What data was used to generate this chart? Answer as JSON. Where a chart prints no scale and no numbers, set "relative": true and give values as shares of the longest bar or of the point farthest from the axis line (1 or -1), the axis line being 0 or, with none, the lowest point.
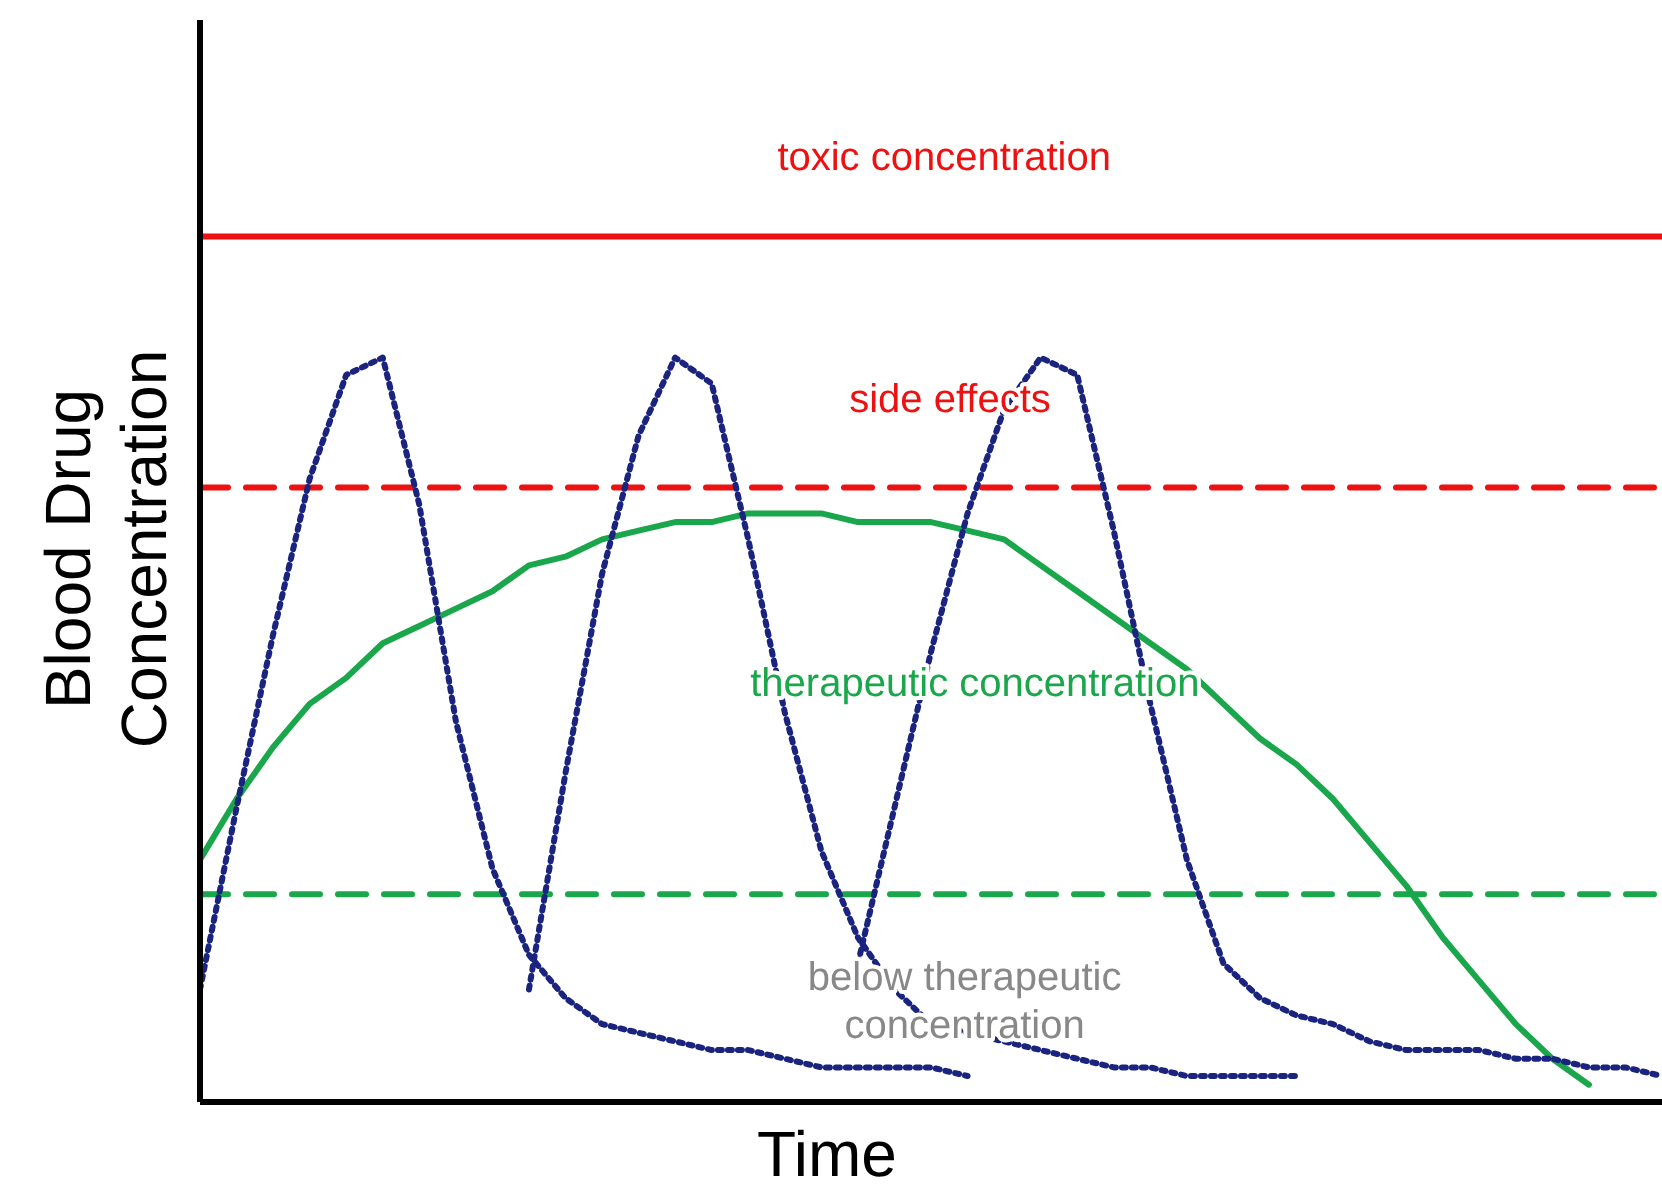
{
  "chart_data": {
    "type": "line",
    "relative": true,
    "xlabel": "Time",
    "ylabel": "Blood Drug Concentration",
    "tick_labels": false,
    "categories": [
      null,
      null,
      null,
      null,
      null,
      null,
      null,
      null,
      null,
      null,
      null,
      null,
      null,
      null,
      null,
      null,
      null,
      null,
      null,
      null,
      null,
      null,
      null,
      null,
      null,
      null,
      null,
      null,
      null,
      null,
      null,
      null,
      null,
      null,
      null,
      null,
      null,
      null,
      null,
      null,
      null
    ],
    "series": [
      {
        "color": "#ee1111",
        "line_style": "solid",
        "values": [
          1,
          1,
          1,
          1,
          1,
          1,
          1,
          1,
          1,
          1,
          1,
          1,
          1,
          1,
          1,
          1,
          1,
          1,
          1,
          1,
          1,
          1,
          1,
          1,
          1,
          1,
          1,
          1,
          1,
          1,
          1,
          1,
          1,
          1,
          1,
          1,
          1,
          1,
          1,
          1,
          1
        ]
      },
      {
        "color": "#ee1111",
        "line_style": "dashed",
        "values": [
          0.71,
          0.71,
          0.71,
          0.71,
          0.71,
          0.71,
          0.71,
          0.71,
          0.71,
          0.71,
          0.71,
          0.71,
          0.71,
          0.71,
          0.71,
          0.71,
          0.71,
          0.71,
          0.71,
          0.71,
          0.71,
          0.71,
          0.71,
          0.71,
          0.71,
          0.71,
          0.71,
          0.71,
          0.71,
          0.71,
          0.71,
          0.71,
          0.71,
          0.71,
          0.71,
          0.71,
          0.71,
          0.71,
          0.71,
          0.71,
          0.71
        ]
      },
      {
        "color": "#1aa64b",
        "line_style": "dashed",
        "values": [
          0.24,
          0.24,
          0.24,
          0.24,
          0.24,
          0.24,
          0.24,
          0.24,
          0.24,
          0.24,
          0.24,
          0.24,
          0.24,
          0.24,
          0.24,
          0.24,
          0.24,
          0.24,
          0.24,
          0.24,
          0.24,
          0.24,
          0.24,
          0.24,
          0.24,
          0.24,
          0.24,
          0.24,
          0.24,
          0.24,
          0.24,
          0.24,
          0.24,
          0.24,
          0.24,
          0.24,
          0.24,
          0.24,
          0.24,
          0.24,
          0.24
        ]
      },
      {
        "color": "#1aa64b",
        "line_style": "solid",
        "values": [
          0.28,
          0.35,
          0.41,
          0.46,
          0.49,
          0.53,
          0.55,
          0.57,
          0.59,
          0.62,
          0.63,
          0.65,
          0.66,
          0.67,
          0.67,
          0.68,
          0.68,
          0.68,
          0.67,
          0.67,
          0.67,
          0.66,
          0.65,
          0.62,
          0.59,
          0.56,
          0.53,
          0.5,
          0.46,
          0.42,
          0.39,
          0.35,
          0.3,
          0.25,
          0.19,
          0.14,
          0.09,
          0.05,
          0.02,
          null,
          null
        ]
      },
      {
        "color": "#1a237e",
        "line_style": "dotted",
        "values": [
          0.13,
          0.34,
          0.54,
          0.72,
          0.84,
          0.86,
          0.69,
          0.44,
          0.27,
          0.17,
          0.12,
          0.09,
          0.08,
          0.07,
          0.06,
          0.06,
          0.05,
          0.04,
          0.04,
          0.04,
          0.04,
          0.03,
          null,
          null,
          null,
          null,
          null,
          null,
          null,
          null,
          null,
          null,
          null,
          null,
          null,
          null,
          null,
          null,
          null,
          null,
          null
        ]
      },
      {
        "color": "#1a237e",
        "line_style": "dotted",
        "values": [
          null,
          null,
          null,
          null,
          null,
          null,
          null,
          null,
          null,
          0.13,
          0.38,
          0.61,
          0.77,
          0.86,
          0.83,
          0.65,
          0.45,
          0.29,
          0.19,
          0.13,
          0.09,
          0.08,
          0.07,
          0.06,
          0.05,
          0.04,
          0.04,
          0.03,
          0.03,
          0.03,
          0.03,
          null,
          null,
          null,
          null,
          null,
          null,
          null,
          null,
          null,
          null
        ]
      },
      {
        "color": "#1a237e",
        "line_style": "dotted",
        "values": [
          null,
          null,
          null,
          null,
          null,
          null,
          null,
          null,
          null,
          null,
          null,
          null,
          null,
          null,
          null,
          null,
          null,
          null,
          0.16,
          0.34,
          0.52,
          0.68,
          0.8,
          0.86,
          0.84,
          0.66,
          0.46,
          0.28,
          0.16,
          0.12,
          0.1,
          0.09,
          0.07,
          0.06,
          0.06,
          0.06,
          0.05,
          0.05,
          0.04,
          0.04,
          0.03
        ]
      }
    ],
    "annotations": [
      "toxic concentration",
      "side effects",
      "therapeutic concentration",
      "below therapeutic concentration"
    ]
  }
}
